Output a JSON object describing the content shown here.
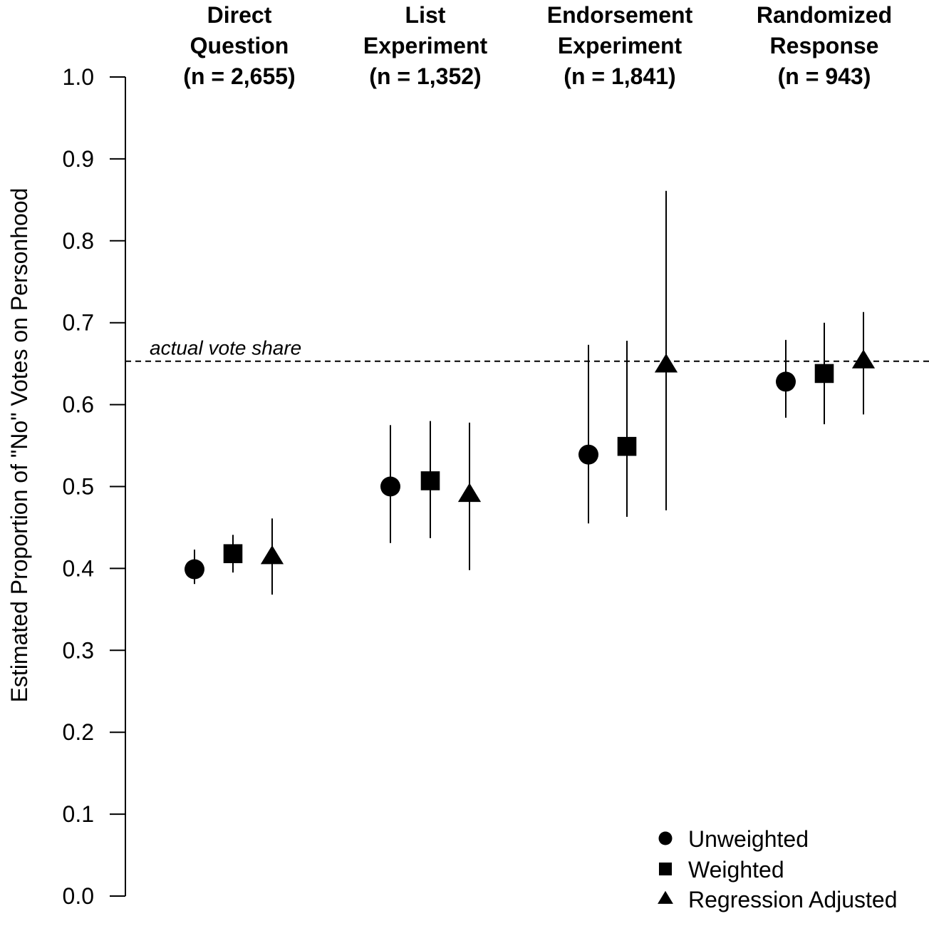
{
  "chart_data": {
    "type": "scatter",
    "ylabel": "Estimated Proportion of \"No\" Votes on Personhood",
    "ylim": [
      0.0,
      1.0
    ],
    "yticks": [
      "0.0",
      "0.1",
      "0.2",
      "0.3",
      "0.4",
      "0.5",
      "0.6",
      "0.7",
      "0.8",
      "0.9",
      "1.0"
    ],
    "grid": false,
    "legend_position": "bottom-right",
    "groups": [
      {
        "name": "Direct Question",
        "lines": [
          "Direct",
          "Question",
          "(n = 2,655)"
        ],
        "n": "2,655"
      },
      {
        "name": "List Experiment",
        "lines": [
          "List",
          "Experiment",
          "(n = 1,352)"
        ],
        "n": "1,352"
      },
      {
        "name": "Endorsement Experiment",
        "lines": [
          "Endorsement",
          "Experiment",
          "(n = 1,841)"
        ],
        "n": "1,841"
      },
      {
        "name": "Randomized Response",
        "lines": [
          "Randomized",
          "Response",
          "(n = 943)"
        ],
        "n": "943"
      }
    ],
    "series": [
      {
        "name": "Unweighted",
        "marker": "circle",
        "estimates": [
          0.399,
          0.5,
          0.539,
          0.628
        ],
        "lower": [
          0.381,
          0.431,
          0.455,
          0.584
        ],
        "upper": [
          0.423,
          0.575,
          0.673,
          0.679
        ]
      },
      {
        "name": "Weighted",
        "marker": "square",
        "estimates": [
          0.418,
          0.507,
          0.549,
          0.638
        ],
        "lower": [
          0.395,
          0.437,
          0.463,
          0.576
        ],
        "upper": [
          0.441,
          0.58,
          0.678,
          0.7
        ]
      },
      {
        "name": "Regression Adjusted",
        "marker": "triangle",
        "estimates": [
          0.414,
          0.49,
          0.648,
          0.653
        ],
        "lower": [
          0.368,
          0.398,
          0.471,
          0.588
        ],
        "upper": [
          0.461,
          0.578,
          0.861,
          0.713
        ]
      }
    ],
    "reference_line": {
      "label": "actual vote share",
      "value": 0.653
    }
  }
}
